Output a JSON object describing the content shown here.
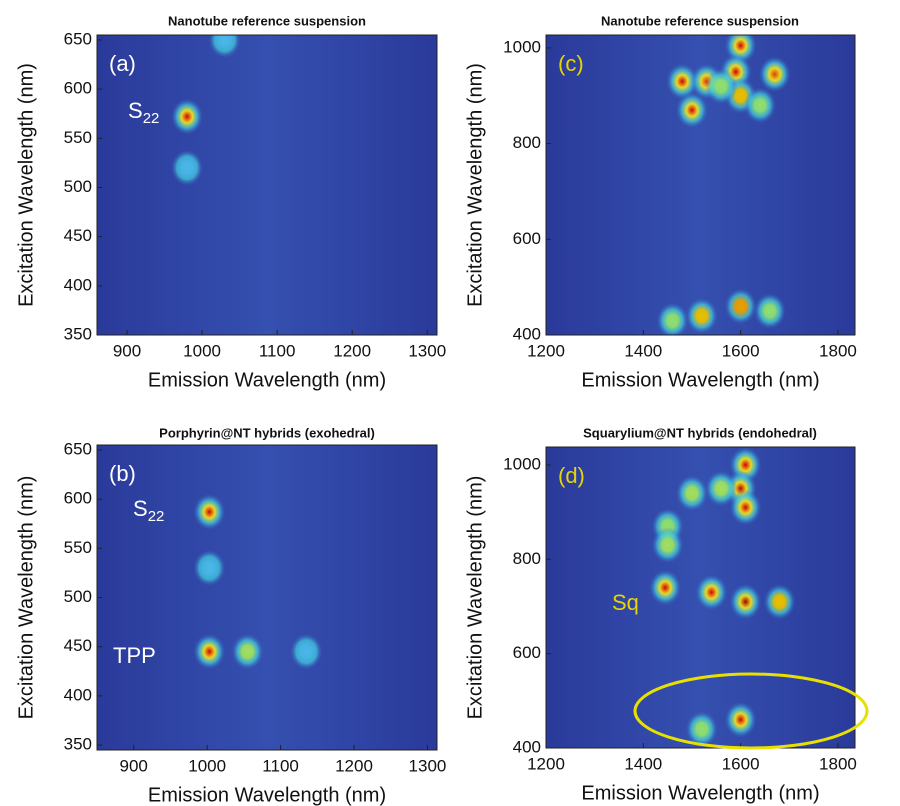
{
  "chart_data": [
    {
      "type": "heatmap",
      "title": "Nanotube reference suspension",
      "panel_label": "(a)",
      "label_color": "#ffffff",
      "x_label": "Emission Wavelength (nm)",
      "y_label": "Excitation Wavelength (nm)",
      "xlim": [
        860,
        1313
      ],
      "ylim": [
        350,
        655
      ],
      "xticks": [
        900,
        1000,
        1100,
        1200,
        1300
      ],
      "yticks": [
        350,
        400,
        450,
        500,
        550,
        600,
        650
      ],
      "annotations": [
        {
          "text": "S",
          "sub": "22"
        }
      ],
      "peaks": {
        "x": [
          980,
          980,
          1030
        ],
        "y": [
          572,
          520,
          650
        ],
        "colors": [
          "#d40000",
          "#49b8e8",
          "#49b8e8"
        ]
      }
    },
    {
      "type": "heatmap",
      "title": "Nanotube reference suspension",
      "panel_label": "(c)",
      "label_color": "#e8d400",
      "x_label": "Emission Wavelength (nm)",
      "y_label": "Excitation Wavelength (nm)",
      "xlim": [
        1200,
        1835
      ],
      "ylim": [
        400,
        1027
      ],
      "xticks": [
        1200,
        1400,
        1600,
        1800
      ],
      "yticks": [
        400,
        600,
        800,
        1000
      ],
      "annotations": [],
      "peaks": {
        "x": [
          1480,
          1530,
          1600,
          1590,
          1670,
          1500,
          1600,
          1640,
          1520,
          1600,
          1660,
          1460,
          1560
        ],
        "y": [
          930,
          930,
          1005,
          950,
          945,
          870,
          900,
          880,
          440,
          460,
          450,
          430,
          920
        ],
        "colors": [
          "#d40000",
          "#e03000",
          "#d40000",
          "#d40000",
          "#e04000",
          "#d40000",
          "#e8c000",
          "#8fe070",
          "#e8c000",
          "#e8a000",
          "#8fe070",
          "#8fe070",
          "#8fe070"
        ]
      }
    },
    {
      "type": "heatmap",
      "title": "Porphyrin@NT hybrids (exohedral)",
      "panel_label": "(b)",
      "label_color": "#ffffff",
      "x_label": "Emission Wavelength (nm)",
      "y_label": "Excitation Wavelength (nm)",
      "xlim": [
        850,
        1313
      ],
      "ylim": [
        345,
        655
      ],
      "xticks": [
        900,
        1000,
        1100,
        1200,
        1300
      ],
      "yticks": [
        350,
        400,
        450,
        500,
        550,
        600,
        650
      ],
      "annotations": [
        {
          "text": "S",
          "sub": "22"
        },
        {
          "text": "TPP",
          "sub": ""
        }
      ],
      "peaks": {
        "x": [
          1003,
          1003,
          1003,
          1055,
          1135
        ],
        "y": [
          587,
          530,
          445,
          445,
          445
        ],
        "colors": [
          "#d40000",
          "#49b8e8",
          "#d40000",
          "#a0e060",
          "#49b8e8"
        ]
      }
    },
    {
      "type": "heatmap",
      "title": "Squarylium@NT hybrids (endohedral)",
      "panel_label": "(d)",
      "label_color": "#e8d400",
      "x_label": "Emission Wavelength (nm)",
      "y_label": "Excitation Wavelength (nm)",
      "xlim": [
        1200,
        1835
      ],
      "ylim": [
        400,
        1038
      ],
      "xticks": [
        1200,
        1400,
        1600,
        1800
      ],
      "yticks": [
        400,
        600,
        800,
        1000
      ],
      "annotations": [
        {
          "text": "Sq",
          "sub": ""
        }
      ],
      "peaks": {
        "x": [
          1445,
          1540,
          1610,
          1680,
          1610,
          1600,
          1610,
          1450,
          1500,
          1450,
          1600,
          1520,
          1560
        ],
        "y": [
          740,
          730,
          710,
          710,
          1000,
          950,
          910,
          870,
          940,
          830,
          460,
          440,
          950
        ],
        "colors": [
          "#d40000",
          "#d40000",
          "#a00000",
          "#e8c000",
          "#d40000",
          "#c00000",
          "#d40000",
          "#8fe070",
          "#a0e060",
          "#a0e060",
          "#d40000",
          "#8fe070",
          "#a0e060"
        ]
      }
    }
  ]
}
